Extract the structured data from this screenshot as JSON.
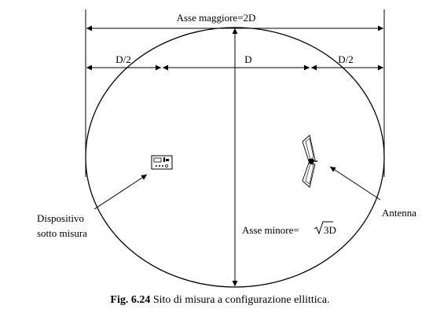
{
  "labels": {
    "major_axis": "Asse maggiore=2D",
    "half_left": "D/2",
    "center": "D",
    "half_right": "D/2",
    "minor_axis_prefix": "Asse minore=",
    "minor_axis_value": "3D",
    "device_line1": "Dispositivo",
    "device_line2": "sotto misura",
    "antenna": "Antenna"
  },
  "caption": {
    "number": "Fig. 6.24",
    "text": " Sito di misura a configurazione ellittica."
  },
  "icons": {
    "device": "device-under-test-icon",
    "antenna": "biconical-antenna-icon"
  }
}
